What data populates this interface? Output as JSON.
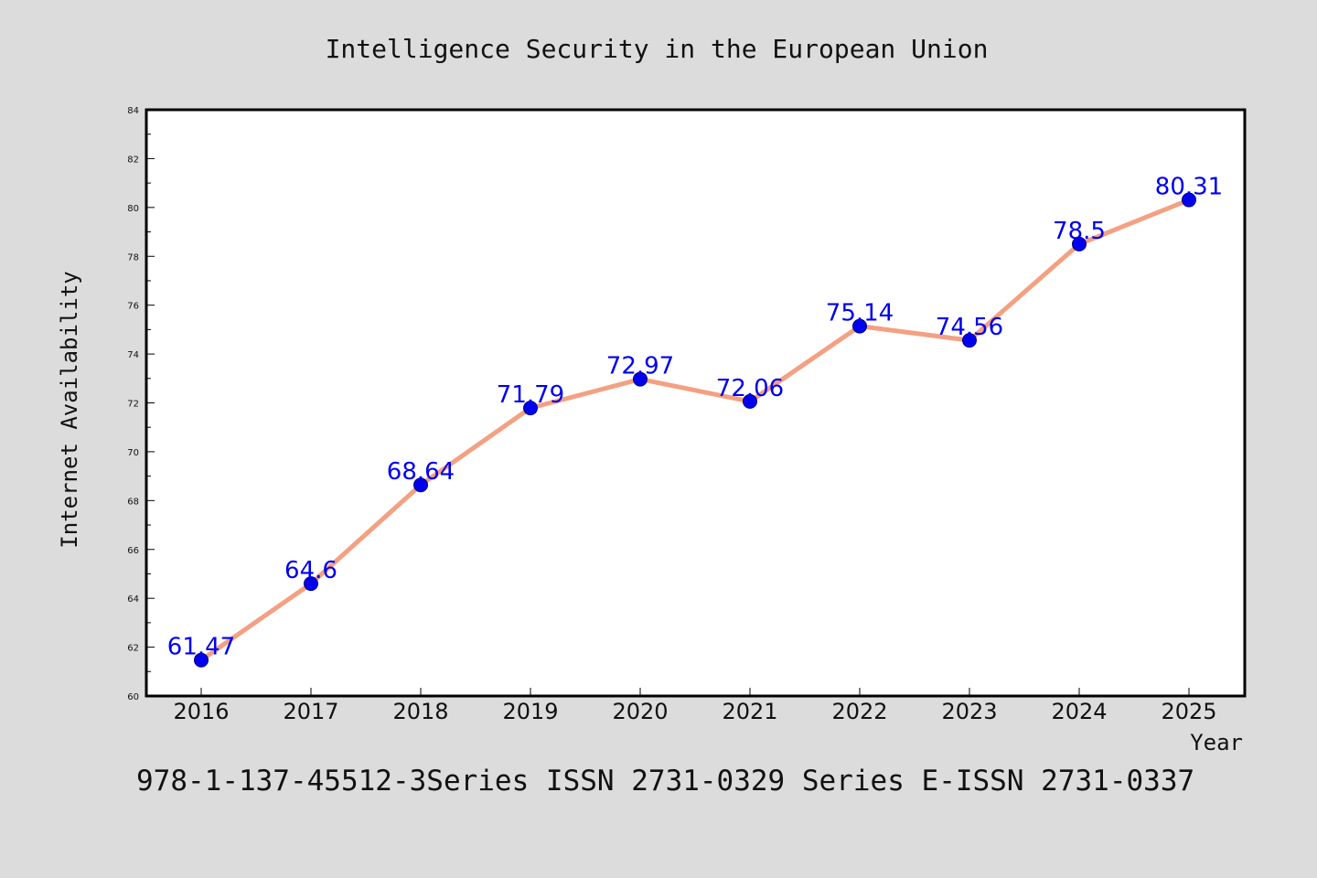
{
  "chart_data": {
    "type": "line",
    "title": "Intelligence Security in the European Union",
    "xlabel": "Year",
    "ylabel": "Internet Availability",
    "x": [
      "2016",
      "2017",
      "2018",
      "2019",
      "2020",
      "2021",
      "2022",
      "2023",
      "2024",
      "2025"
    ],
    "series": [
      {
        "values": [
          61.47,
          64.6,
          68.64,
          71.79,
          72.97,
          72.06,
          75.14,
          74.56,
          78.5,
          80.31
        ],
        "labels": [
          "61.47",
          "64.6",
          "68.64",
          "71.79",
          "72.97",
          "72.06",
          "75.14",
          "74.56",
          "78.5",
          "80.31"
        ],
        "line_color": "#f4a082",
        "marker_color": "#0000ee",
        "label_color": "#0000ee"
      }
    ],
    "ylim": [
      60,
      84
    ],
    "yticks": [
      "60",
      "62",
      "64",
      "66",
      "68",
      "70",
      "72",
      "74",
      "76",
      "78",
      "80",
      "82",
      "84"
    ],
    "grid": false,
    "legend": "none"
  },
  "footer": {
    "text": "978-1-137-45512-3Series ISSN 2731-0329 Series E-ISSN 2731-0337"
  },
  "colors": {
    "background": "#dcdcdc",
    "plot_background": "#ffffff"
  }
}
